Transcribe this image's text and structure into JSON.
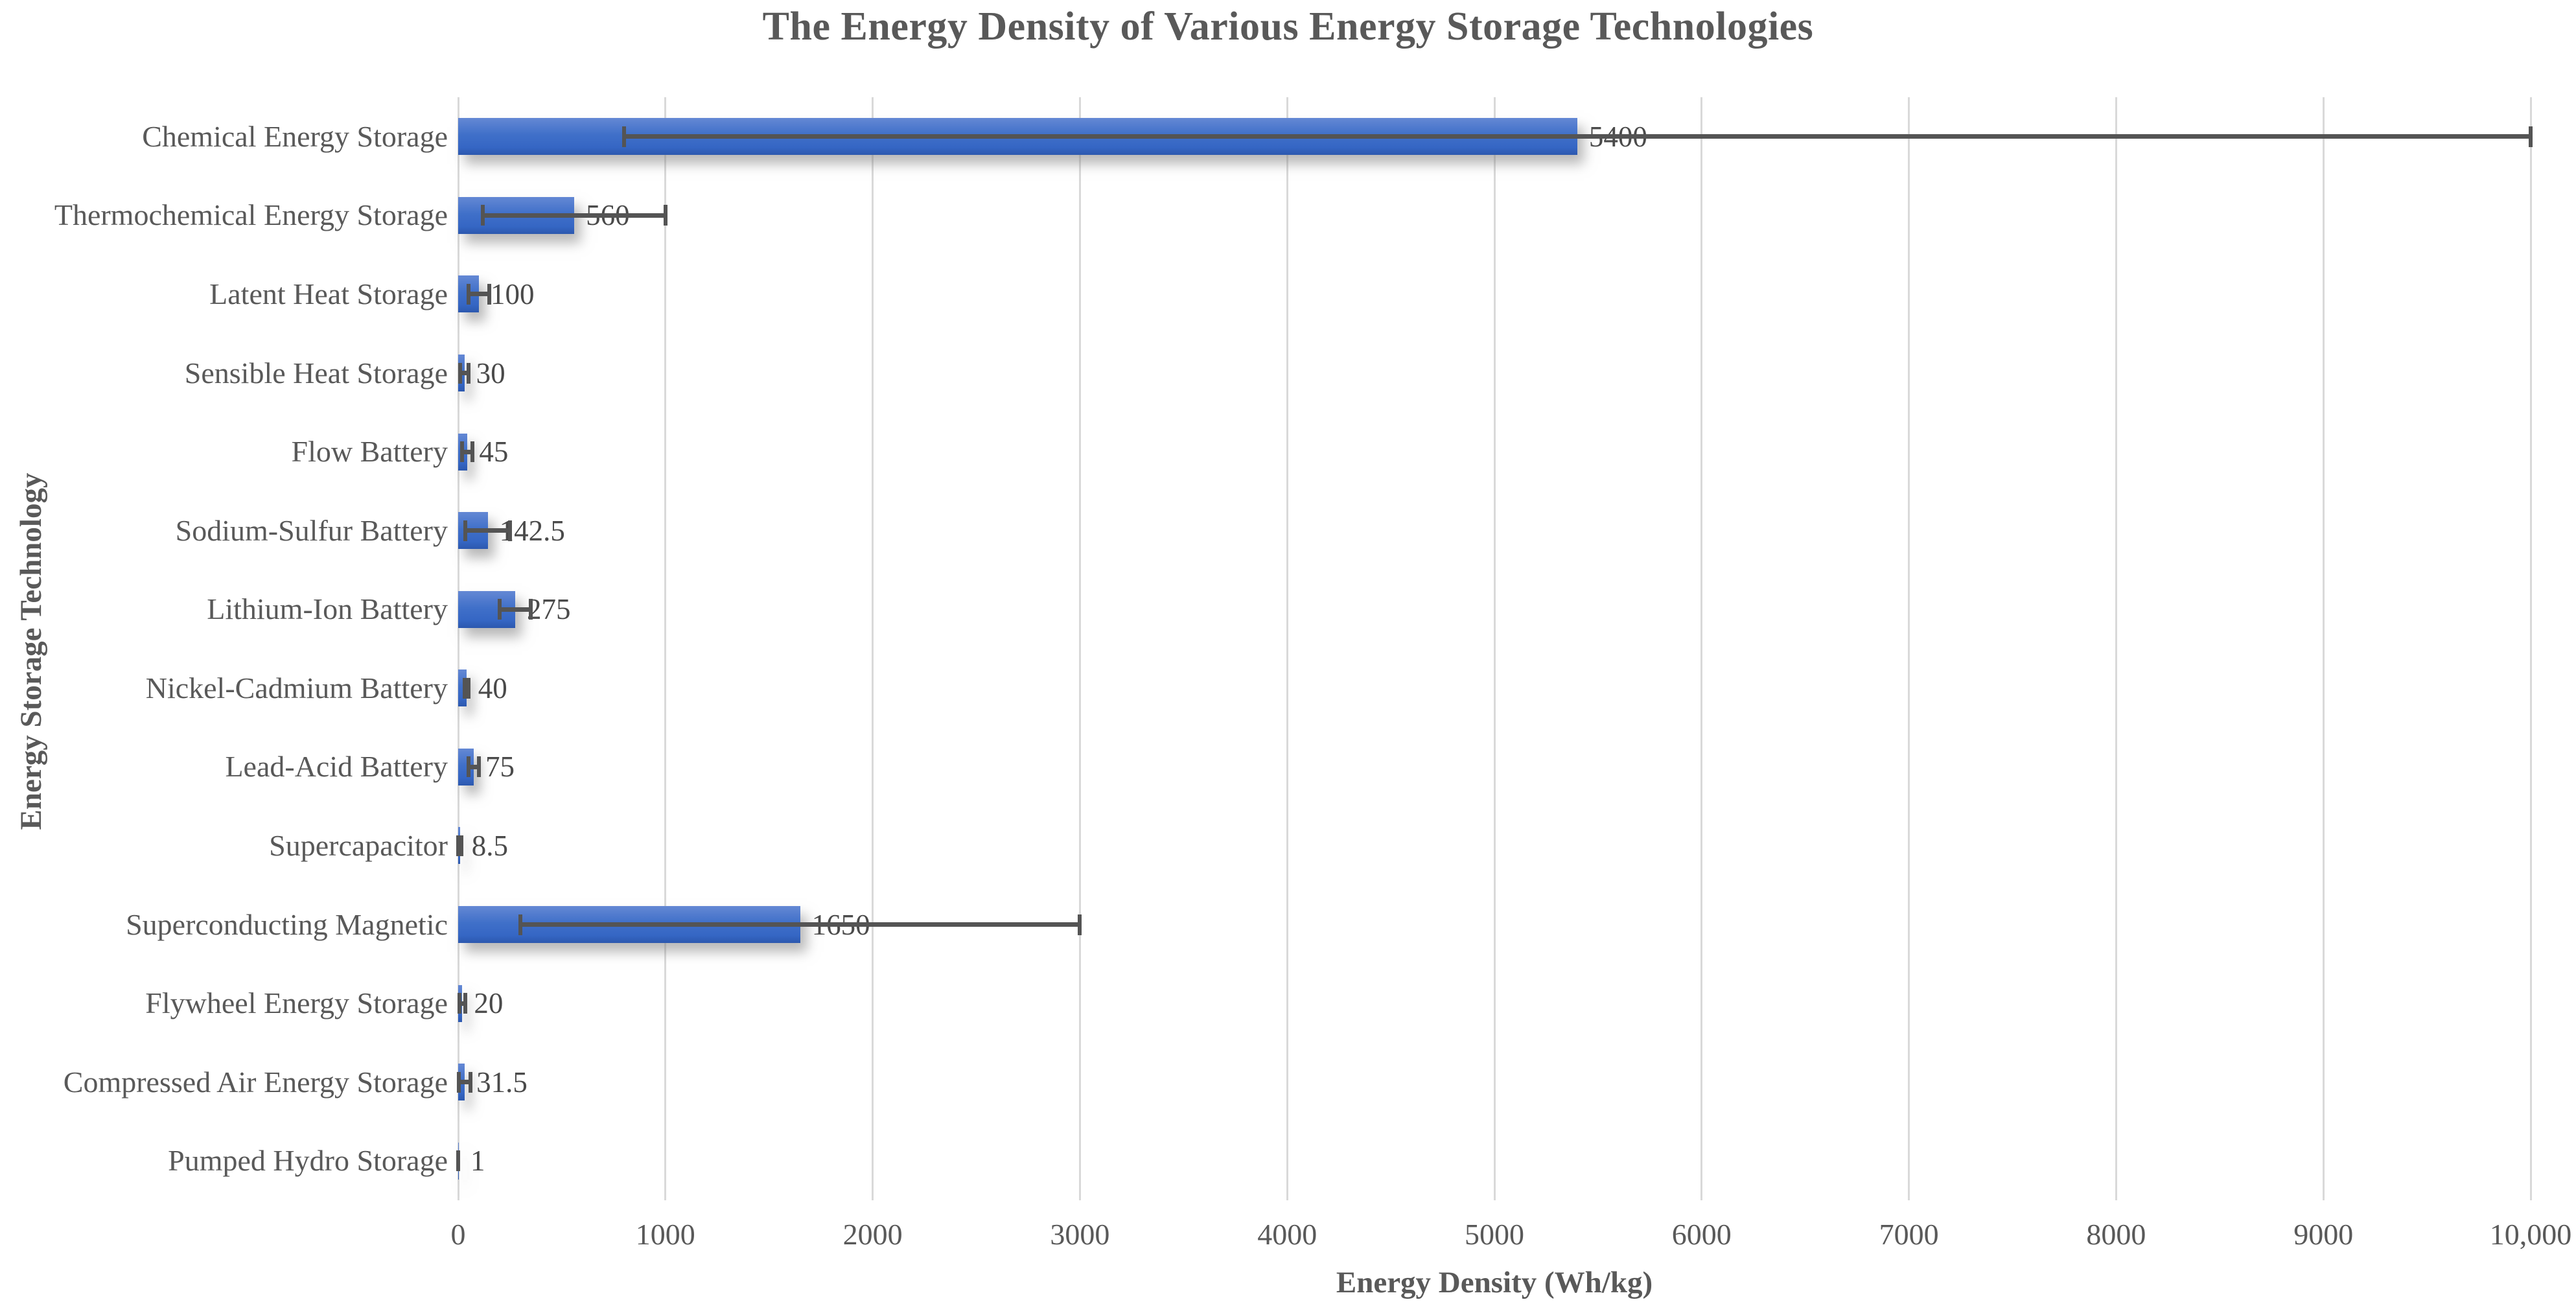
{
  "chart_data": {
    "type": "bar",
    "orientation": "horizontal",
    "title": "The Energy Density of Various Energy Storage Technologies",
    "xlabel": "Energy Density (Wh/kg)",
    "ylabel": "Energy Storage Technology",
    "xlim": [
      0,
      10000
    ],
    "grid": true,
    "legend": "none",
    "x_ticks": [
      {
        "value": 0,
        "label": "0"
      },
      {
        "value": 1000,
        "label": "1000"
      },
      {
        "value": 2000,
        "label": "2000"
      },
      {
        "value": 3000,
        "label": "3000"
      },
      {
        "value": 4000,
        "label": "4000"
      },
      {
        "value": 5000,
        "label": "5000"
      },
      {
        "value": 6000,
        "label": "6000"
      },
      {
        "value": 7000,
        "label": "7000"
      },
      {
        "value": 8000,
        "label": "8000"
      },
      {
        "value": 9000,
        "label": "9000"
      },
      {
        "value": 10000,
        "label": "10,000"
      }
    ],
    "categories": [
      "Chemical Energy Storage",
      "Thermochemical Energy Storage",
      "Latent Heat Storage",
      "Sensible Heat Storage",
      "Flow Battery",
      "Sodium-Sulfur Battery",
      "Lithium-Ion Battery",
      "Nickel-Cadmium Battery",
      "Lead-Acid Battery",
      "Supercapacitor",
      "Superconducting Magnetic",
      "Flywheel Energy Storage",
      "Compressed Air Energy Storage",
      "Pumped Hydro Storage"
    ],
    "series": [
      {
        "name": "Energy Density (Wh/kg)",
        "values": [
          5400,
          560,
          100,
          30,
          45,
          142.5,
          275,
          40,
          75,
          8.5,
          1650,
          20,
          31.5,
          1
        ],
        "error_ranges": [
          [
            800,
            10000
          ],
          [
            120,
            1000
          ],
          [
            50,
            150
          ],
          [
            10,
            50
          ],
          [
            20,
            70
          ],
          [
            35,
            250
          ],
          [
            200,
            350
          ],
          [
            30,
            50
          ],
          [
            50,
            100
          ],
          [
            1,
            16
          ],
          [
            300,
            3000
          ],
          [
            5,
            35
          ],
          [
            3,
            60
          ],
          [
            0.5,
            1.5
          ]
        ]
      }
    ],
    "data_labels": [
      "5400",
      "560",
      "100",
      "30",
      "45",
      "142.5",
      "275",
      "40",
      "75",
      "8.5",
      "1650",
      "20",
      "31.5",
      "1"
    ]
  },
  "style": {
    "bar_gradient_top": "#6488d4",
    "bar_gradient_mid": "#4070c9",
    "bar_gradient_low": "#3566c4",
    "bar_gradient_bottom": "#2c58ae",
    "bar_shadow": "rgba(125,125,125,0.55)",
    "grid_color": "#d9d9d9",
    "error_color": "#545454",
    "axis_text_color": "#595959",
    "data_label_color": "#4a4a4a",
    "title_color": "#595959"
  }
}
